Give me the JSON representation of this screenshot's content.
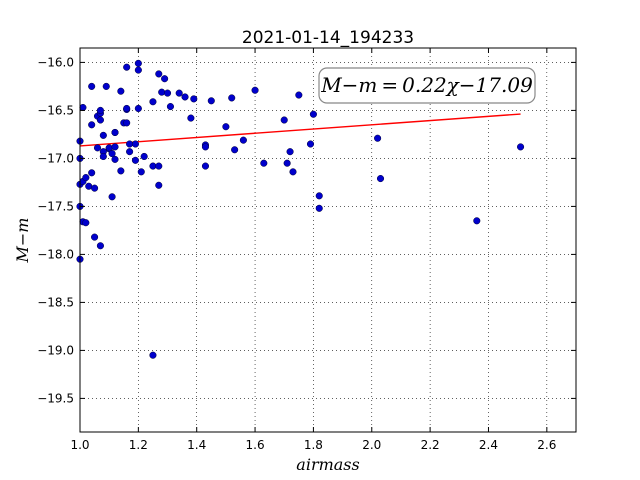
{
  "chart_data": {
    "type": "scatter",
    "title": "2021-01-14_194233",
    "xlabel": "airmass",
    "ylabel": "M−m",
    "xlim": [
      1.0,
      2.7
    ],
    "ylim": [
      -19.85,
      -15.85
    ],
    "x_ticks": [
      "1.0",
      "1.2",
      "1.4",
      "1.6",
      "1.8",
      "2.0",
      "2.2",
      "2.4",
      "2.6"
    ],
    "y_ticks": [
      "−16.0",
      "−16.5",
      "−17.0",
      "−17.5",
      "−18.0",
      "−18.5",
      "−19.0",
      "−19.5"
    ],
    "grid": true,
    "annotation": "M−m = 0.22χ−17.09",
    "fit_line": {
      "slope": 0.22,
      "intercept": -17.09,
      "x_range": [
        1.0,
        2.51
      ],
      "color": "#ff0000"
    },
    "marker_color": "#0000cc",
    "points": [
      [
        1.0,
        -16.82
      ],
      [
        1.0,
        -17.0
      ],
      [
        1.0,
        -17.27
      ],
      [
        1.0,
        -17.5
      ],
      [
        1.0,
        -18.05
      ],
      [
        1.01,
        -16.47
      ],
      [
        1.01,
        -17.24
      ],
      [
        1.01,
        -17.66
      ],
      [
        1.02,
        -17.67
      ],
      [
        1.02,
        -17.2
      ],
      [
        1.03,
        -17.29
      ],
      [
        1.04,
        -16.65
      ],
      [
        1.04,
        -16.25
      ],
      [
        1.04,
        -17.15
      ],
      [
        1.05,
        -17.31
      ],
      [
        1.05,
        -17.82
      ],
      [
        1.06,
        -16.89
      ],
      [
        1.06,
        -16.56
      ],
      [
        1.07,
        -16.6
      ],
      [
        1.07,
        -16.53
      ],
      [
        1.07,
        -16.5
      ],
      [
        1.07,
        -17.91
      ],
      [
        1.08,
        -16.76
      ],
      [
        1.08,
        -16.93
      ],
      [
        1.08,
        -16.98
      ],
      [
        1.09,
        -16.25
      ],
      [
        1.1,
        -16.9
      ],
      [
        1.1,
        -16.89
      ],
      [
        1.11,
        -16.95
      ],
      [
        1.11,
        -17.4
      ],
      [
        1.12,
        -16.73
      ],
      [
        1.12,
        -16.73
      ],
      [
        1.12,
        -16.88
      ],
      [
        1.12,
        -17.01
      ],
      [
        1.14,
        -16.3
      ],
      [
        1.14,
        -17.13
      ],
      [
        1.15,
        -16.63
      ],
      [
        1.16,
        -16.63
      ],
      [
        1.16,
        -16.49
      ],
      [
        1.16,
        -16.48
      ],
      [
        1.16,
        -16.05
      ],
      [
        1.17,
        -16.85
      ],
      [
        1.17,
        -16.93
      ],
      [
        1.19,
        -16.85
      ],
      [
        1.19,
        -17.02
      ],
      [
        1.2,
        -16.01
      ],
      [
        1.2,
        -16.08
      ],
      [
        1.2,
        -16.48
      ],
      [
        1.21,
        -17.14
      ],
      [
        1.22,
        -16.98
      ],
      [
        1.25,
        -16.41
      ],
      [
        1.25,
        -17.08
      ],
      [
        1.25,
        -19.05
      ],
      [
        1.27,
        -16.12
      ],
      [
        1.27,
        -17.08
      ],
      [
        1.27,
        -17.28
      ],
      [
        1.28,
        -16.31
      ],
      [
        1.29,
        -16.17
      ],
      [
        1.3,
        -16.32
      ],
      [
        1.31,
        -16.46
      ],
      [
        1.34,
        -16.32
      ],
      [
        1.36,
        -16.36
      ],
      [
        1.38,
        -16.58
      ],
      [
        1.39,
        -16.38
      ],
      [
        1.43,
        -16.86
      ],
      [
        1.43,
        -16.88
      ],
      [
        1.43,
        -17.08
      ],
      [
        1.45,
        -16.4
      ],
      [
        1.5,
        -16.67
      ],
      [
        1.52,
        -16.37
      ],
      [
        1.53,
        -16.91
      ],
      [
        1.56,
        -16.81
      ],
      [
        1.6,
        -16.29
      ],
      [
        1.63,
        -17.05
      ],
      [
        1.7,
        -16.6
      ],
      [
        1.71,
        -17.05
      ],
      [
        1.72,
        -16.93
      ],
      [
        1.73,
        -17.14
      ],
      [
        1.75,
        -16.34
      ],
      [
        1.79,
        -16.85
      ],
      [
        1.8,
        -16.54
      ],
      [
        1.82,
        -17.39
      ],
      [
        1.82,
        -17.52
      ],
      [
        2.02,
        -16.79
      ],
      [
        2.03,
        -17.21
      ],
      [
        2.36,
        -17.65
      ],
      [
        2.51,
        -16.88
      ]
    ]
  }
}
